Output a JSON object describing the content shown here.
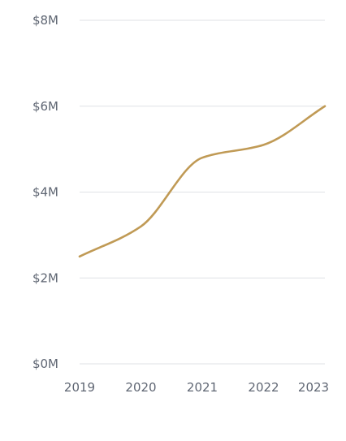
{
  "chart_data": {
    "type": "line",
    "x": [
      "2019",
      "2020",
      "2021",
      "2022",
      "2023"
    ],
    "series": [
      {
        "values": [
          2.5,
          3.2,
          4.8,
          5.1,
          6.0
        ]
      }
    ],
    "ylim": [
      0,
      8
    ],
    "y_ticks": [
      0,
      2,
      4,
      6,
      8
    ],
    "y_tick_labels": [
      "$0M",
      "$2M",
      "$4M",
      "$6M",
      "$8M"
    ],
    "x_tick_labels": [
      "2019",
      "2020",
      "2021",
      "2022",
      "2023"
    ],
    "grid": "horizontal",
    "legend": "none",
    "colors": {
      "line": "#c09a55",
      "grid": "#dfe2e6",
      "text": "#5f6673"
    }
  }
}
